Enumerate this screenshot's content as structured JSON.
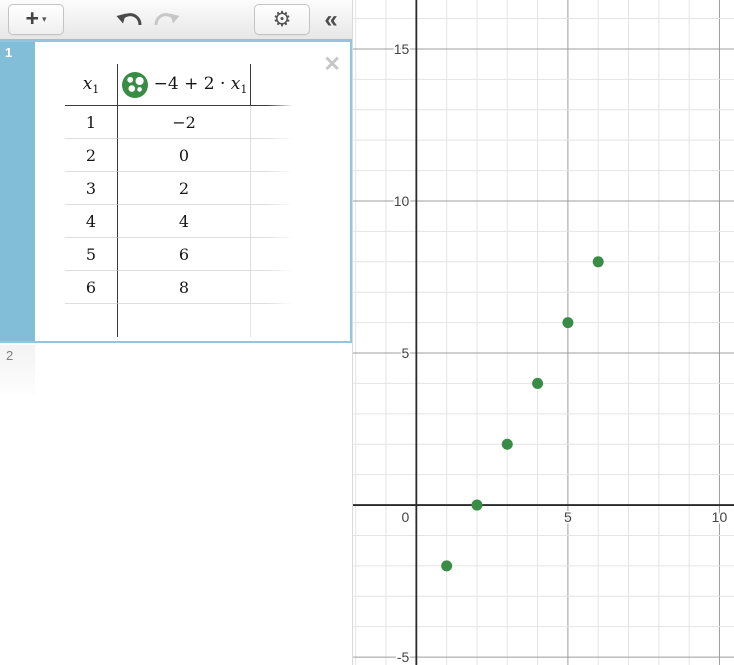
{
  "toolbar": {
    "add_label": "+",
    "add_caret": "▾",
    "settings_icon": "⚙",
    "collapse_icon": "«"
  },
  "expression_list": {
    "item_1": {
      "number": "1",
      "close_icon": "✕",
      "table": {
        "header": {
          "col_x": {
            "var": "x",
            "sub": "1"
          },
          "col_y": {
            "pre": "−4 + 2 · ",
            "var": "x",
            "sub": "1"
          }
        },
        "rows": [
          {
            "x": "1",
            "y": "−2"
          },
          {
            "x": "2",
            "y": "0"
          },
          {
            "x": "3",
            "y": "2"
          },
          {
            "x": "4",
            "y": "4"
          },
          {
            "x": "5",
            "y": "6"
          },
          {
            "x": "6",
            "y": "8"
          }
        ]
      }
    },
    "item_2": {
      "number": "2"
    }
  },
  "colors": {
    "point_green": "#388c46",
    "selected_gutter_blue": "#82bed7",
    "selection_border_blue": "#92c6de",
    "axis_color": "#2a2a2a",
    "major_grid": "#9c9c9c",
    "minor_grid": "#e4e4e4"
  },
  "chart_data": {
    "type": "scatter",
    "points_x": [
      1,
      2,
      3,
      4,
      5,
      6
    ],
    "points_y": [
      -2,
      0,
      2,
      4,
      6,
      8
    ],
    "point_color": "#388c46",
    "point_radius": 5.5,
    "xlim": [
      -2.09,
      10.48
    ],
    "ylim": [
      -5.26,
      16.61
    ],
    "minor_step": 1,
    "label_step": 5,
    "grid": true,
    "x_tick_labels": [
      "0",
      "5",
      "10"
    ],
    "y_tick_labels": [
      "-5",
      "5",
      "10",
      "15"
    ],
    "title": "",
    "xlabel": "",
    "ylabel": ""
  }
}
